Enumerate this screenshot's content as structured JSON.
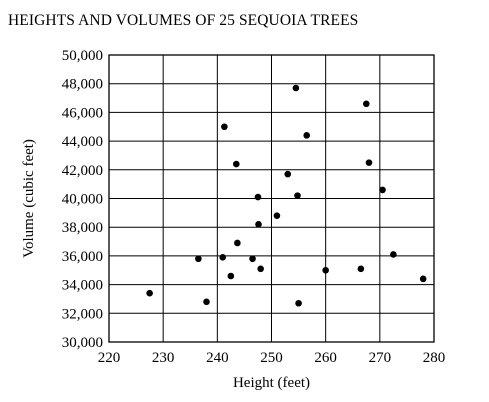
{
  "chart_data": {
    "type": "scatter",
    "title": "HEIGHTS AND VOLUMES OF 25 SEQUOIA TREES",
    "xlabel": "Height (feet)",
    "ylabel": "Volume (cubic feet)",
    "xlim": [
      220,
      280
    ],
    "ylim": [
      30000,
      50000
    ],
    "x_ticks": [
      "220",
      "230",
      "240",
      "250",
      "260",
      "270",
      "280"
    ],
    "y_ticks": [
      "30,000",
      "32,000",
      "34,000",
      "36,000",
      "38,000",
      "40,000",
      "42,000",
      "44,000",
      "46,000",
      "48,000",
      "50,000"
    ],
    "grid": true,
    "legend": "none",
    "marker_color": "#000000",
    "points": [
      {
        "x": 227.5,
        "y": 33400
      },
      {
        "x": 236.5,
        "y": 35800
      },
      {
        "x": 238,
        "y": 32800
      },
      {
        "x": 241,
        "y": 35900
      },
      {
        "x": 241.3,
        "y": 45000
      },
      {
        "x": 242.5,
        "y": 34600
      },
      {
        "x": 243.5,
        "y": 42400
      },
      {
        "x": 243.7,
        "y": 36900
      },
      {
        "x": 246.5,
        "y": 35800
      },
      {
        "x": 247.5,
        "y": 40100
      },
      {
        "x": 247.6,
        "y": 38200
      },
      {
        "x": 248,
        "y": 35100
      },
      {
        "x": 251,
        "y": 38800
      },
      {
        "x": 253,
        "y": 41700
      },
      {
        "x": 254.5,
        "y": 47700
      },
      {
        "x": 254.8,
        "y": 40200
      },
      {
        "x": 255,
        "y": 32700
      },
      {
        "x": 256.5,
        "y": 44400
      },
      {
        "x": 260,
        "y": 35000
      },
      {
        "x": 266.5,
        "y": 35100
      },
      {
        "x": 267.5,
        "y": 46600
      },
      {
        "x": 268,
        "y": 42500
      },
      {
        "x": 270.5,
        "y": 40600
      },
      {
        "x": 272.5,
        "y": 36100
      },
      {
        "x": 278,
        "y": 34400
      }
    ]
  }
}
